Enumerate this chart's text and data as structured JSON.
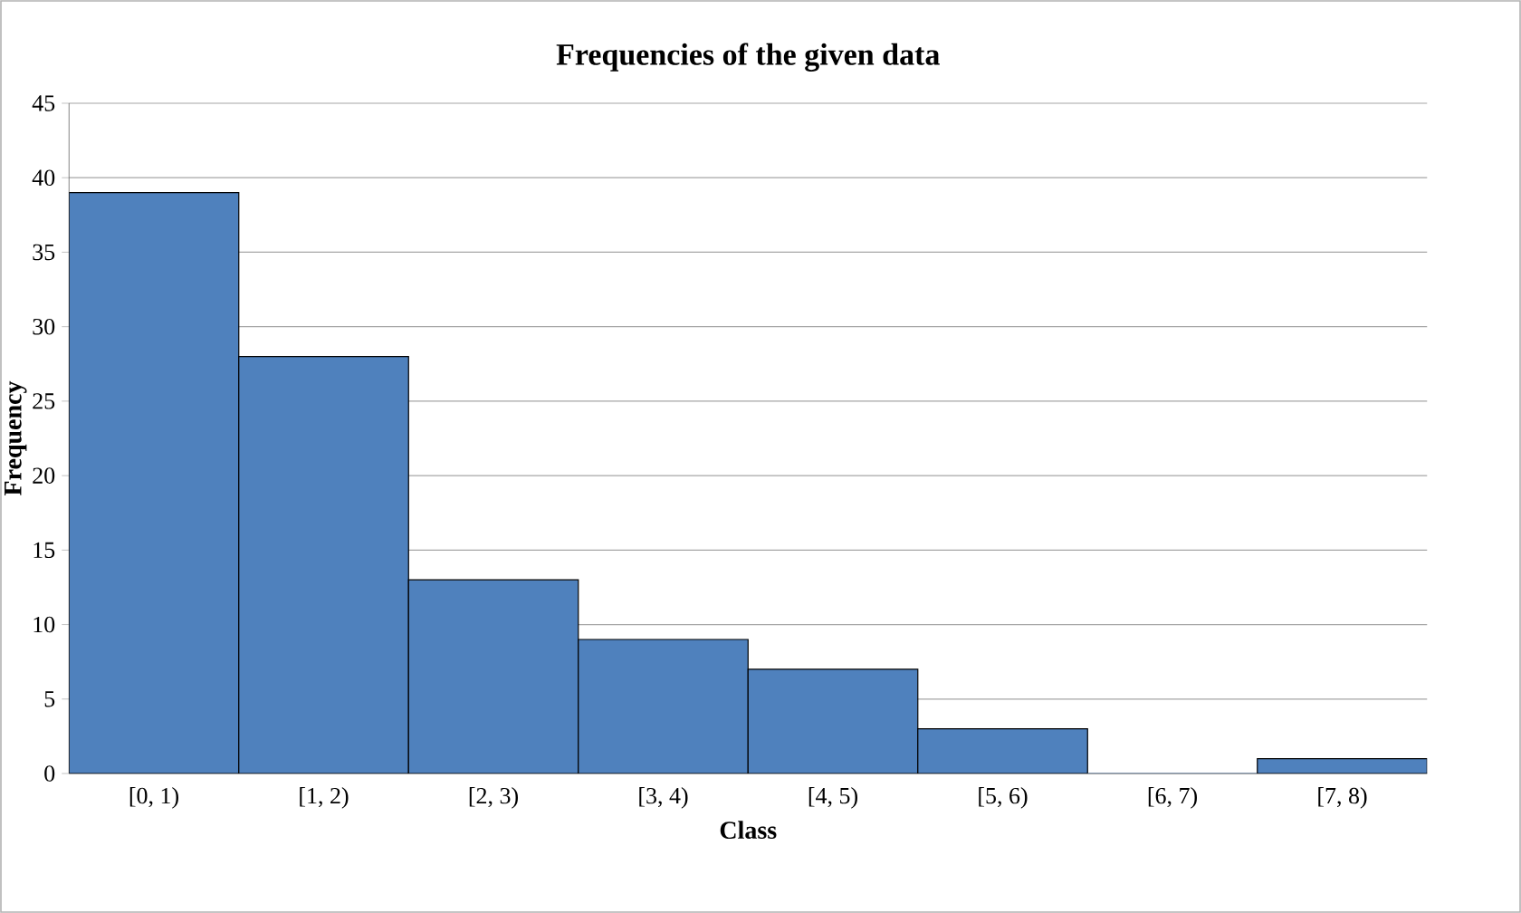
{
  "chart_data": {
    "type": "bar",
    "title": "Frequencies of the given data",
    "xlabel": "Class",
    "ylabel": "Frequency",
    "categories": [
      "[0, 1)",
      "[1, 2)",
      "[2, 3)",
      "[3, 4)",
      "[4, 5)",
      "[5, 6)",
      "[6, 7)",
      "[7, 8)"
    ],
    "values": [
      39,
      28,
      13,
      9,
      7,
      3,
      0,
      1
    ],
    "color": "#4f81bd",
    "ylim": [
      0,
      45
    ],
    "yticks": [
      0,
      5,
      10,
      15,
      20,
      25,
      30,
      35,
      40,
      45
    ],
    "grid": "y"
  }
}
